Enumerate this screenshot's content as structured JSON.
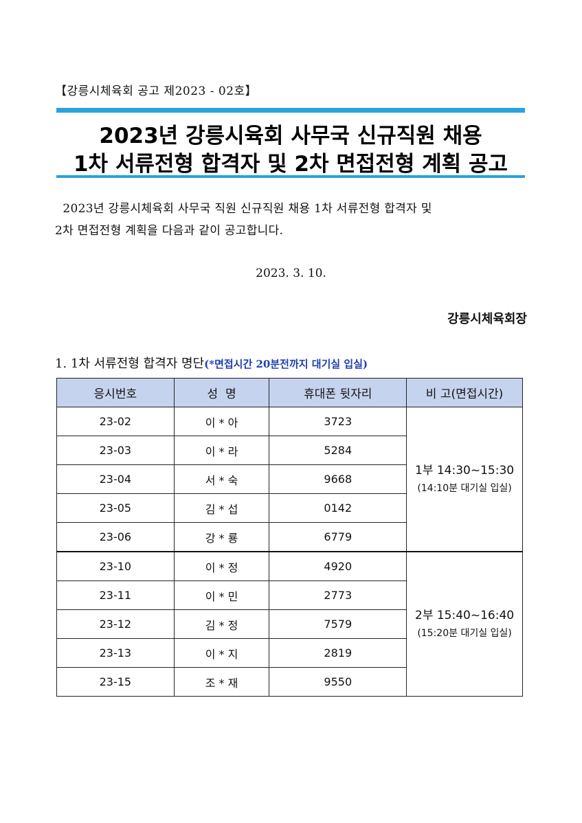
{
  "notice_number": "【강릉시체육회 공고 제2023 - 02호】",
  "title": {
    "line1": "2023년 강릉시육회 사무국 신규직원 채용",
    "line2": "1차 서류전형 합격자 및 2차 면접전형 계획 공고"
  },
  "body": {
    "line1": "  2023년 강릉시체육회 사무국 직원 신규직원 채용 1차 서류전형 합격자 및",
    "line2": "2차 면접전형 계획을 다음과 같이 공고합니다."
  },
  "date": "2023. 3. 10.",
  "signer": "강릉시체육회장",
  "section1": {
    "heading": "1. 1차 서류전형 합격자 명단",
    "note": "(*면접시간 20분전까지 대기실 입실)"
  },
  "table": {
    "headers": [
      "응시번호",
      "성  명",
      "휴대폰 뒷자리",
      "비 고(면접시간)"
    ],
    "rows": [
      {
        "id": "23-02",
        "name": "이 * 아",
        "phone": "3723"
      },
      {
        "id": "23-03",
        "name": "이 * 라",
        "phone": "5284"
      },
      {
        "id": "23-04",
        "name": "서 * 숙",
        "phone": "9668"
      },
      {
        "id": "23-05",
        "name": "김 * 섭",
        "phone": "0142"
      },
      {
        "id": "23-06",
        "name": "강 * 룡",
        "phone": "6779"
      },
      {
        "id": "23-10",
        "name": "이 * 정",
        "phone": "4920"
      },
      {
        "id": "23-11",
        "name": "이 * 민",
        "phone": "2773"
      },
      {
        "id": "23-12",
        "name": "김 * 정",
        "phone": "7579"
      },
      {
        "id": "23-13",
        "name": "이 * 지",
        "phone": "2819"
      },
      {
        "id": "23-15",
        "name": "조 * 재",
        "phone": "9550"
      }
    ],
    "remarks": [
      {
        "main": "1부  14:30~15:30",
        "sub": "(14:10분 대기실 입실)"
      },
      {
        "main": "2부  15:40~16:40",
        "sub": "(15:20분 대기실 입실)"
      }
    ]
  },
  "colors": {
    "rule": "#2aa3dd",
    "header_bg": "#c6d3ee",
    "note_text": "#1f3fb0"
  }
}
